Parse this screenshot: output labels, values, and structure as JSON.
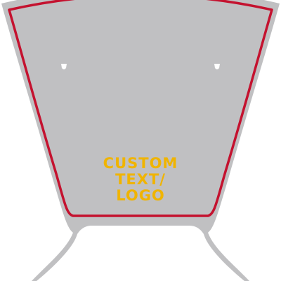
{
  "decal": {
    "text_lines": [
      "CUSTOM",
      "TEXT/",
      "LOGO"
    ],
    "colors": {
      "panel_fill": "#c0c0c2",
      "outline": "#c4122f",
      "text": "#f0b400",
      "background": "#ffffff",
      "marker": "#ffffff"
    }
  }
}
